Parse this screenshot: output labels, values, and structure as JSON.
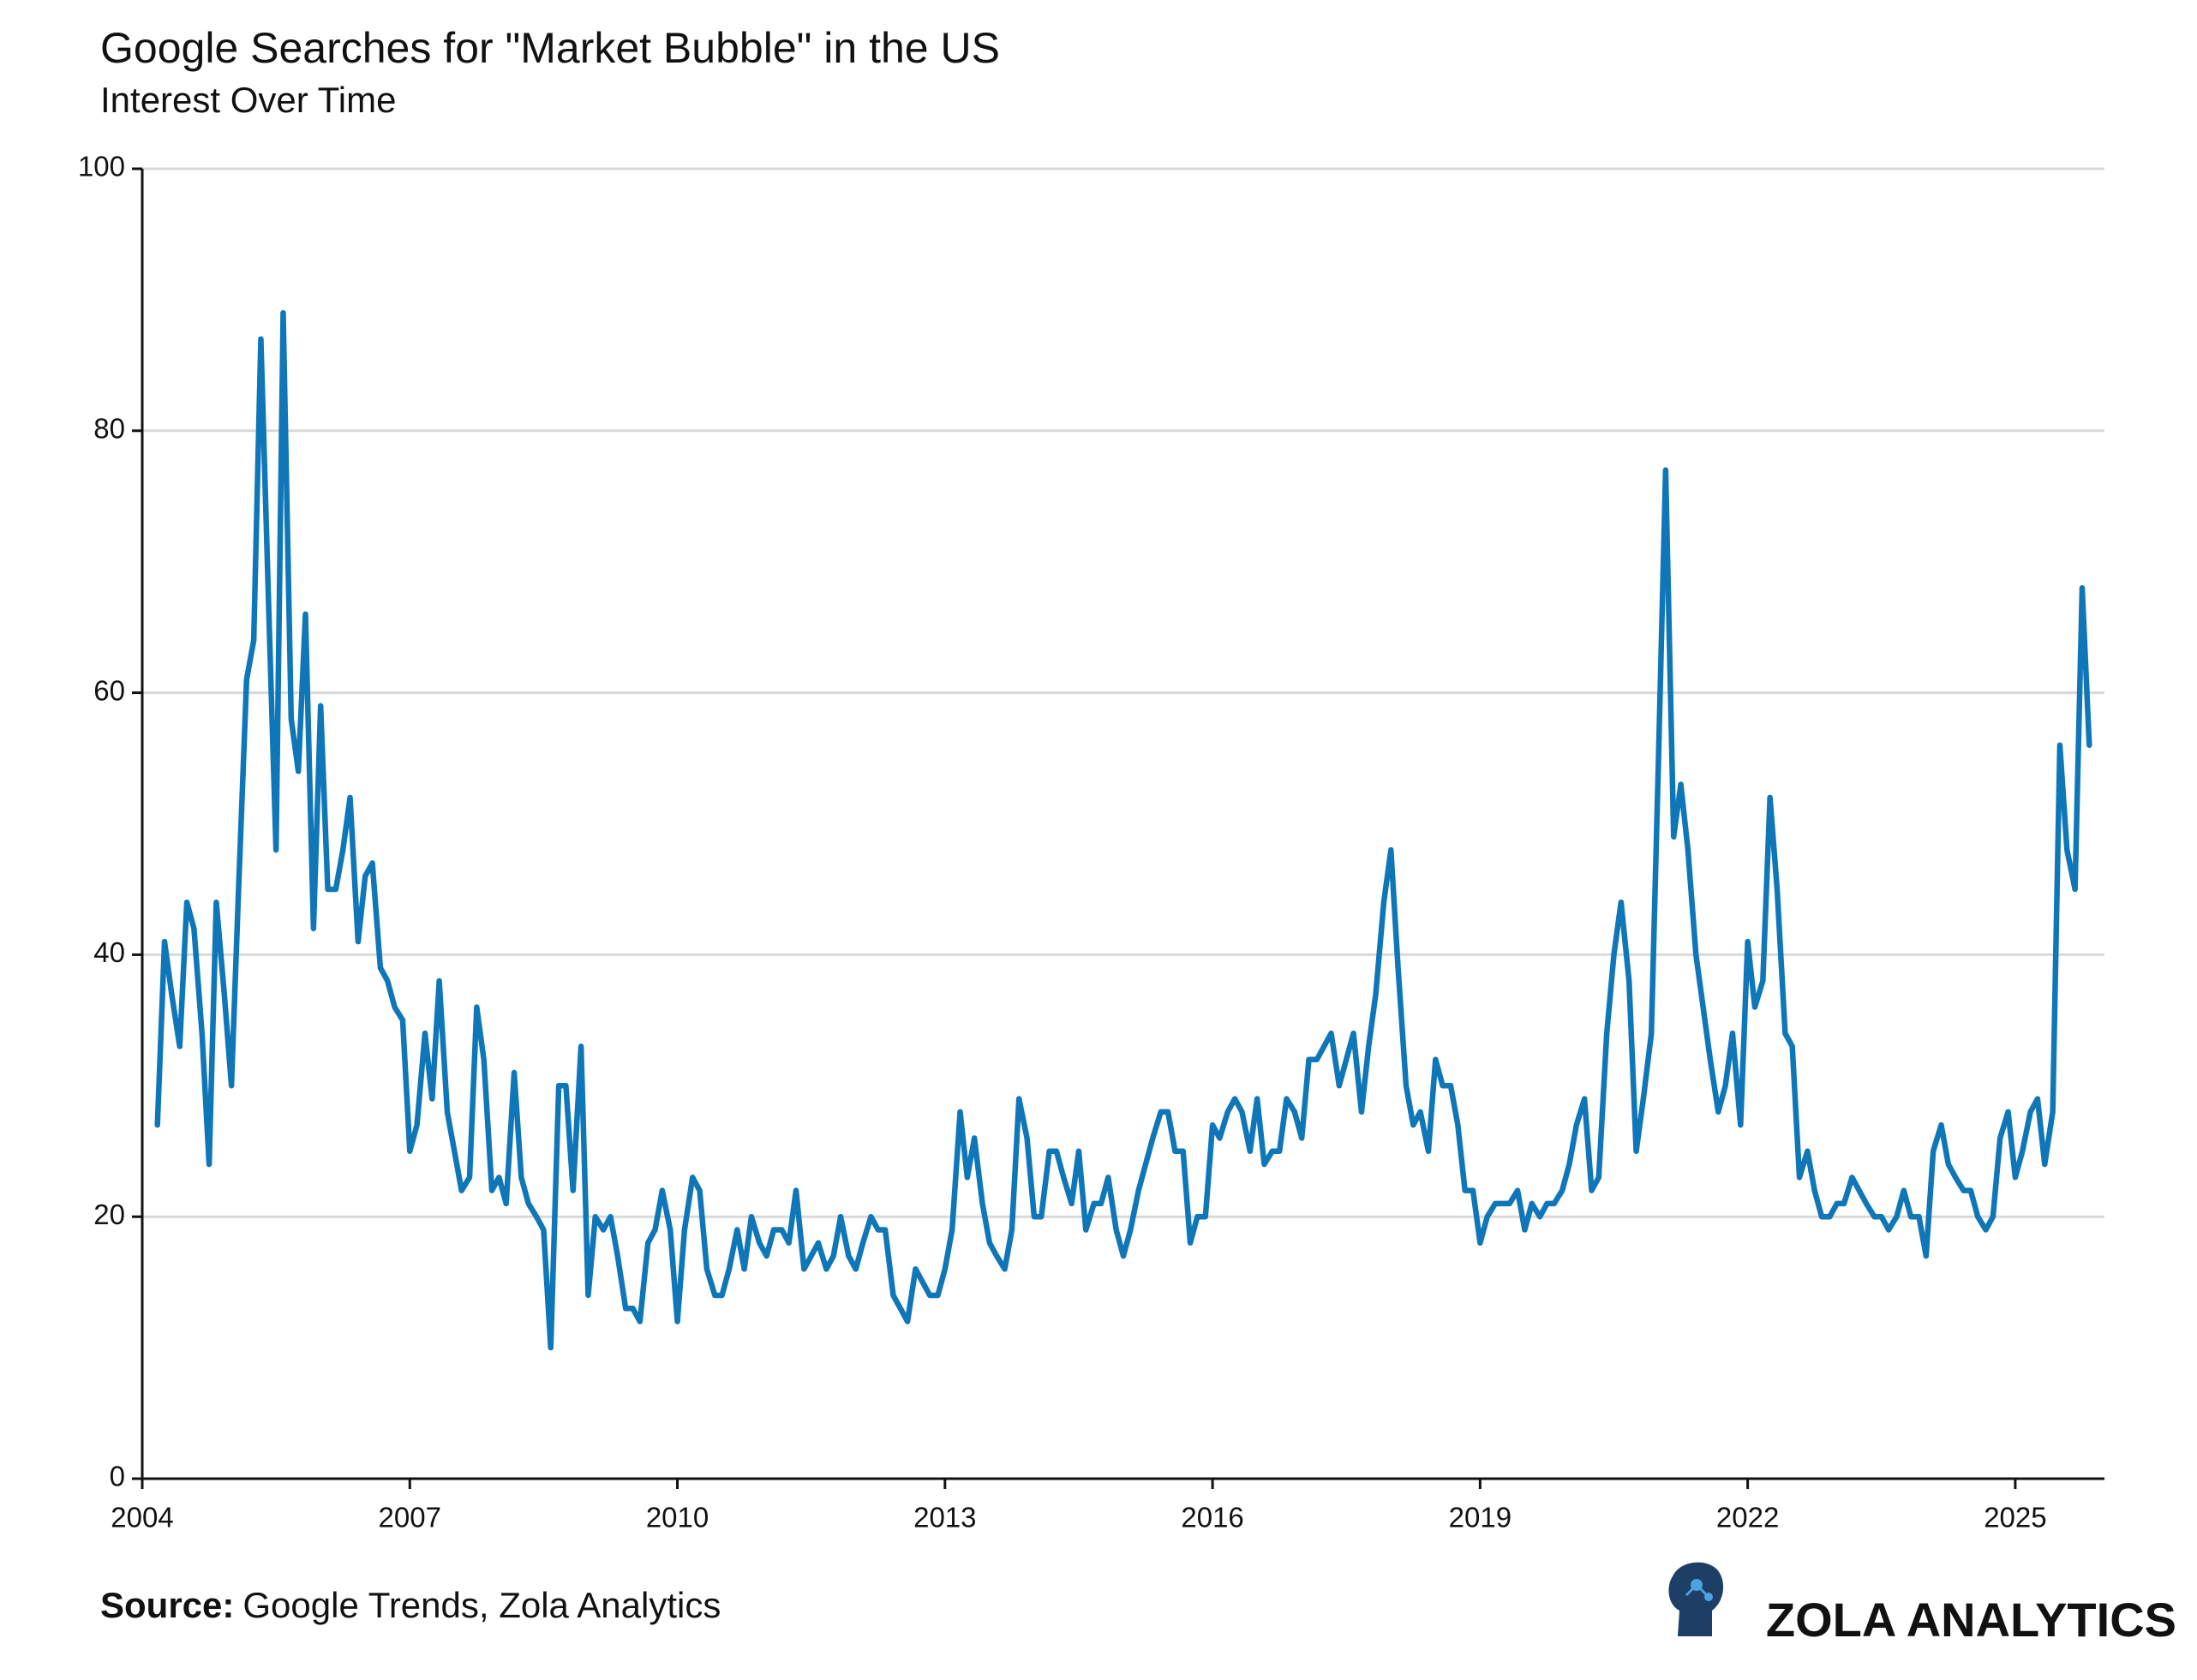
{
  "chart_data": {
    "type": "line",
    "title": "Google Searches for \"Market Bubble\" in the US",
    "subtitle": "Interest Over Time",
    "source_label": "Source:",
    "source": "Google Trends, Zola Analytics",
    "brand": "ZOLA ANALYTICS",
    "color": "#0f76b8",
    "grid": true,
    "xlim": [
      2004,
      2026
    ],
    "xticks": [
      2004,
      2007,
      2010,
      2013,
      2016,
      2019,
      2022,
      2025
    ],
    "ylim": [
      0,
      100
    ],
    "yticks": [
      0,
      20,
      40,
      60,
      80,
      100
    ],
    "x": [
      2004.17,
      2004.25,
      2004.33,
      2004.42,
      2004.5,
      2004.58,
      2004.67,
      2004.75,
      2004.83,
      2004.92,
      2005,
      2005.08,
      2005.17,
      2005.25,
      2005.33,
      2005.42,
      2005.5,
      2005.58,
      2005.67,
      2005.75,
      2005.83,
      2005.92,
      2006,
      2006.08,
      2006.17,
      2006.25,
      2006.33,
      2006.42,
      2006.5,
      2006.58,
      2006.67,
      2006.75,
      2006.83,
      2006.92,
      2007,
      2007.08,
      2007.17,
      2007.25,
      2007.33,
      2007.42,
      2007.5,
      2007.58,
      2007.67,
      2007.75,
      2007.83,
      2007.92,
      2008,
      2008.08,
      2008.17,
      2008.25,
      2008.33,
      2008.42,
      2008.5,
      2008.58,
      2008.67,
      2008.75,
      2008.83,
      2008.92,
      2009,
      2009.08,
      2009.17,
      2009.25,
      2009.33,
      2009.42,
      2009.5,
      2009.58,
      2009.67,
      2009.75,
      2009.83,
      2009.92,
      2010,
      2010.08,
      2010.17,
      2010.25,
      2010.33,
      2010.42,
      2010.5,
      2010.58,
      2010.67,
      2010.75,
      2010.83,
      2010.92,
      2011,
      2011.08,
      2011.17,
      2011.25,
      2011.33,
      2011.42,
      2011.5,
      2011.58,
      2011.67,
      2011.75,
      2011.83,
      2011.92,
      2012,
      2012.08,
      2012.17,
      2012.25,
      2012.33,
      2012.42,
      2012.5,
      2012.58,
      2012.67,
      2012.75,
      2012.83,
      2012.92,
      2013,
      2013.08,
      2013.17,
      2013.25,
      2013.33,
      2013.42,
      2013.5,
      2013.58,
      2013.67,
      2013.75,
      2013.83,
      2013.92,
      2014,
      2014.08,
      2014.17,
      2014.25,
      2014.33,
      2014.42,
      2014.5,
      2014.58,
      2014.67,
      2014.75,
      2014.83,
      2014.92,
      2015,
      2015.08,
      2015.17,
      2015.25,
      2015.33,
      2015.42,
      2015.5,
      2015.58,
      2015.67,
      2015.75,
      2015.83,
      2015.92,
      2016,
      2016.08,
      2016.17,
      2016.25,
      2016.33,
      2016.42,
      2016.5,
      2016.58,
      2016.67,
      2016.75,
      2016.83,
      2016.92,
      2017,
      2017.08,
      2017.17,
      2017.25,
      2017.33,
      2017.42,
      2017.5,
      2017.58,
      2017.67,
      2017.75,
      2017.83,
      2017.92,
      2018,
      2018.08,
      2018.17,
      2018.25,
      2018.33,
      2018.42,
      2018.5,
      2018.58,
      2018.67,
      2018.75,
      2018.83,
      2018.92,
      2019,
      2019.08,
      2019.17,
      2019.25,
      2019.33,
      2019.42,
      2019.5,
      2019.58,
      2019.67,
      2019.75,
      2019.83,
      2019.92,
      2020,
      2020.08,
      2020.17,
      2020.25,
      2020.33,
      2020.42,
      2020.5,
      2020.58,
      2020.67,
      2020.75,
      2020.83,
      2020.92,
      2021,
      2021.08,
      2021.17,
      2021.25,
      2021.33,
      2021.42,
      2021.5,
      2021.58,
      2021.67,
      2021.75,
      2021.83,
      2021.92,
      2022,
      2022.08,
      2022.17,
      2022.25,
      2022.33,
      2022.42,
      2022.5,
      2022.58,
      2022.67,
      2022.75,
      2022.83,
      2022.92,
      2023,
      2023.08,
      2023.17,
      2023.25,
      2023.33,
      2023.42,
      2023.5,
      2023.58,
      2023.67,
      2023.75,
      2023.83,
      2023.92,
      2024,
      2024.08,
      2024.17,
      2024.25,
      2024.33,
      2024.42,
      2024.5,
      2024.58,
      2024.67,
      2024.75,
      2024.83,
      2024.92,
      2025,
      2025.08,
      2025.17,
      2025.25,
      2025.33,
      2025.42,
      2025.5,
      2025.58,
      2025.67,
      2025.75,
      2025.83
    ],
    "values": [
      27,
      41,
      37,
      33,
      44,
      42,
      34,
      24,
      44,
      37,
      30,
      45,
      61,
      64,
      87,
      66,
      48,
      89,
      58,
      54,
      66,
      42,
      59,
      45,
      45,
      48,
      52,
      41,
      46,
      47,
      39,
      38,
      36,
      35,
      25,
      27,
      34,
      29,
      38,
      28,
      25,
      22,
      23,
      36,
      32,
      22,
      23,
      21,
      31,
      23,
      21,
      20,
      19,
      10,
      30,
      30,
      22,
      33,
      14,
      20,
      19,
      20,
      17,
      13,
      13,
      12,
      18,
      19,
      22,
      19,
      12,
      19,
      23,
      22,
      16,
      14,
      14,
      16,
      19,
      16,
      20,
      18,
      17,
      19,
      19,
      18,
      22,
      16,
      17,
      18,
      16,
      17,
      20,
      17,
      16,
      18,
      20,
      19,
      19,
      14,
      13,
      12,
      16,
      15,
      14,
      14,
      16,
      19,
      28,
      23,
      26,
      21,
      18,
      17,
      16,
      19,
      29,
      26,
      20,
      20,
      25,
      25,
      23,
      21,
      25,
      19,
      21,
      21,
      23,
      19,
      17,
      19,
      22,
      24,
      26,
      28,
      28,
      25,
      25,
      18,
      20,
      20,
      27,
      26,
      28,
      29,
      28,
      25,
      29,
      24,
      25,
      25,
      29,
      28,
      26,
      32,
      32,
      33,
      34,
      30,
      32,
      34,
      28,
      33,
      37,
      44,
      48,
      39,
      30,
      27,
      28,
      25,
      32,
      30,
      30,
      27,
      22,
      22,
      18,
      20,
      21,
      21,
      21,
      22,
      19,
      21,
      20,
      21,
      21,
      22,
      24,
      27,
      29,
      22,
      23,
      34,
      40,
      44,
      38,
      25,
      29,
      34,
      55,
      77,
      49,
      53,
      48,
      40,
      36,
      32,
      28,
      30,
      34,
      27,
      41,
      36,
      38,
      52,
      45,
      34,
      33,
      23,
      25,
      22,
      20,
      20,
      21,
      21,
      23,
      22,
      21,
      20,
      20,
      19,
      20,
      22,
      20,
      20,
      17,
      25,
      27,
      24,
      23,
      22,
      22,
      20,
      19,
      20,
      26,
      28,
      23,
      25,
      28,
      29,
      24,
      28,
      56,
      48,
      45,
      68,
      56
    ]
  }
}
